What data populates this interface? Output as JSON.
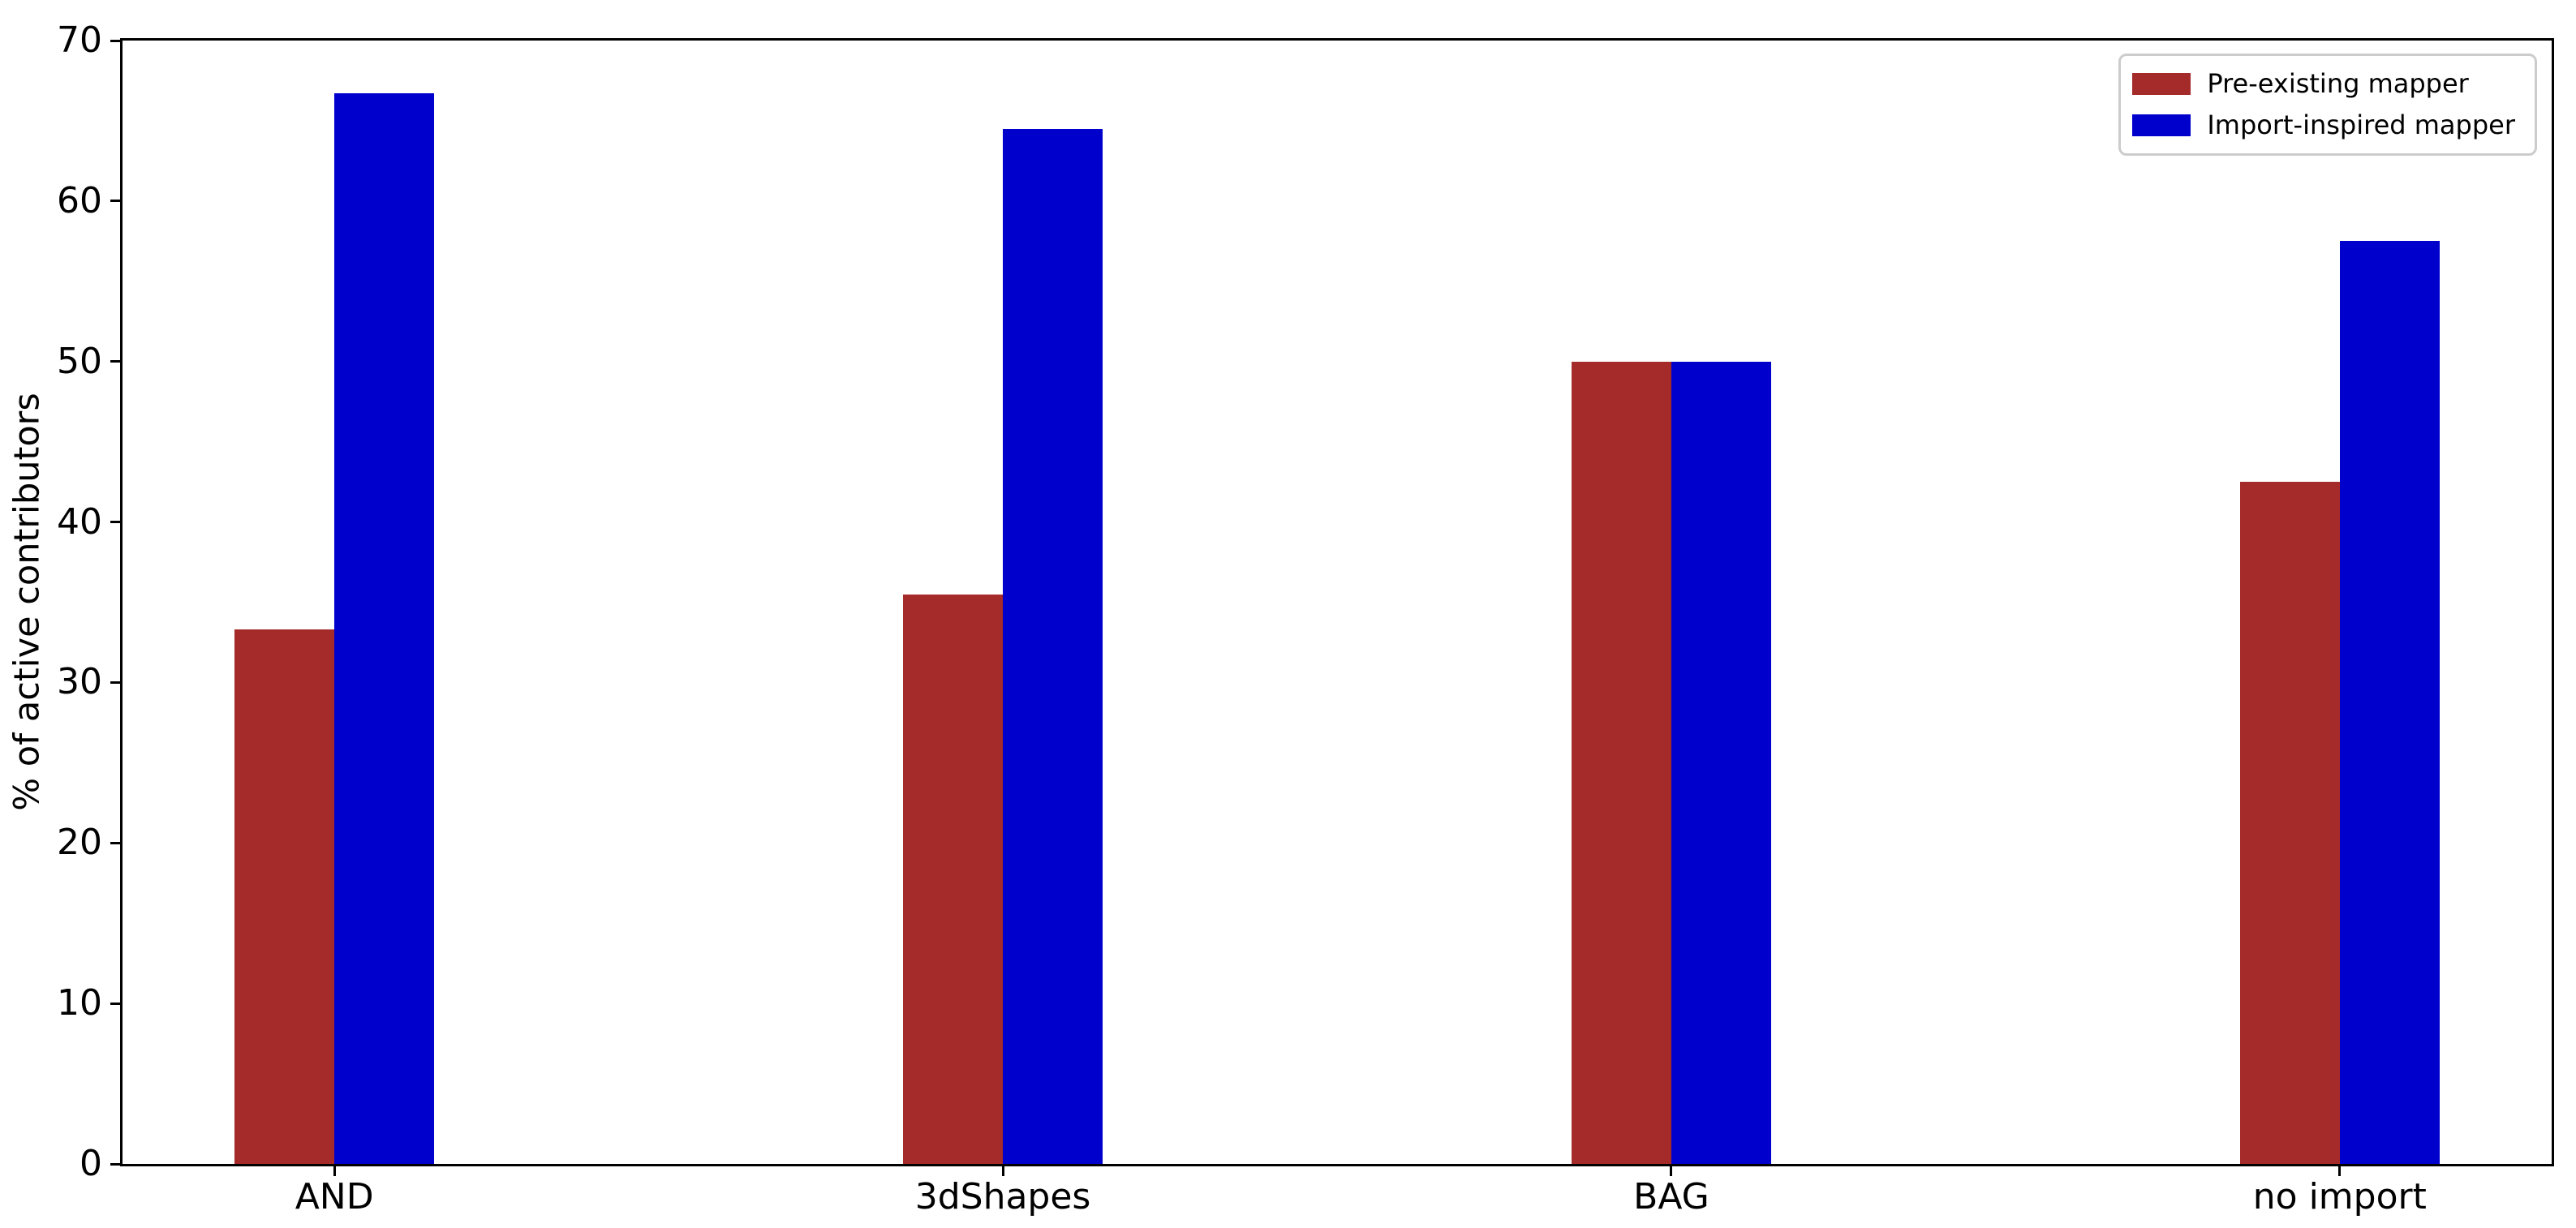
{
  "chart_data": {
    "type": "bar",
    "title": "",
    "categories": [
      "AND",
      "3dShapes",
      "BAG",
      "no import"
    ],
    "series": [
      {
        "name": "Pre-existing mapper",
        "color": "#a52a2a",
        "values": [
          33.3,
          35.5,
          50.0,
          42.5
        ]
      },
      {
        "name": "Import-inspired mapper",
        "color": "#0000cd",
        "values": [
          66.7,
          64.5,
          50.0,
          57.5
        ]
      }
    ],
    "xlabel": "",
    "ylabel": "% of active contributors",
    "ylim": [
      0,
      70
    ],
    "yticks": [
      0,
      10,
      20,
      30,
      40,
      50,
      60,
      70
    ],
    "grid": false,
    "legend_position": "upper right",
    "colors": {
      "axis": "#000000",
      "tick_label": "#000000",
      "legend_border": "#cccccc",
      "background": "#ffffff"
    }
  }
}
